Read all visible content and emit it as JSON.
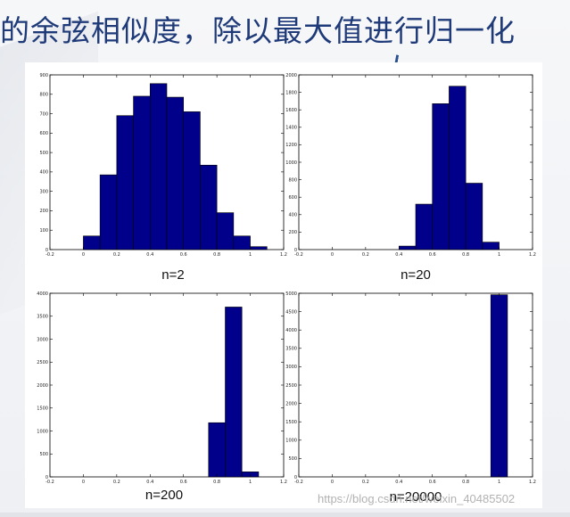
{
  "title": "的余弦相似度，除以最大值进行归一化",
  "watermark": "https://blog.csdn.net/weixin_40485502",
  "chart_data": [
    {
      "type": "bar",
      "caption": "n=2",
      "x_ticks": [
        "-0.2",
        "0",
        "0.2",
        "0.4",
        "0.6",
        "0.8",
        "1",
        "1.2"
      ],
      "y_ticks": [
        "0",
        "100",
        "200",
        "300",
        "400",
        "500",
        "600",
        "700",
        "800",
        "900"
      ],
      "xlim": [
        -0.2,
        1.2
      ],
      "ylim": [
        0,
        900
      ],
      "bin_edges": [
        0.0,
        0.1,
        0.2,
        0.3,
        0.4,
        0.5,
        0.6,
        0.7,
        0.8,
        0.9,
        1.0,
        1.1
      ],
      "values": [
        70,
        385,
        690,
        790,
        855,
        785,
        710,
        435,
        190,
        70,
        15
      ]
    },
    {
      "type": "bar",
      "caption": "n=20",
      "x_ticks": [
        "-0.2",
        "0",
        "0.2",
        "0.4",
        "0.6",
        "0.8",
        "1",
        "1.2"
      ],
      "y_ticks": [
        "0",
        "200",
        "400",
        "600",
        "800",
        "1000",
        "1200",
        "1400",
        "1600",
        "1800",
        "2000"
      ],
      "xlim": [
        -0.2,
        1.2
      ],
      "ylim": [
        0,
        2000
      ],
      "bin_edges": [
        0.4,
        0.5,
        0.6,
        0.7,
        0.8,
        0.9,
        1.0
      ],
      "values": [
        40,
        520,
        1670,
        1870,
        760,
        85
      ]
    },
    {
      "type": "bar",
      "caption": "n=200",
      "x_ticks": [
        "-0.2",
        "0",
        "0.2",
        "0.4",
        "0.6",
        "0.8",
        "1",
        "1.2"
      ],
      "y_ticks": [
        "0",
        "500",
        "1000",
        "1500",
        "2000",
        "2500",
        "3000",
        "3500",
        "4000"
      ],
      "xlim": [
        -0.2,
        1.2
      ],
      "ylim": [
        0,
        4000
      ],
      "bin_edges": [
        0.75,
        0.85,
        0.95,
        1.05
      ],
      "values": [
        1180,
        3700,
        110
      ]
    },
    {
      "type": "bar",
      "caption": "n=20000",
      "x_ticks": [
        "-0.2",
        "0",
        "0.2",
        "0.4",
        "0.6",
        "0.8",
        "1",
        "1.2"
      ],
      "y_ticks": [
        "0",
        "500",
        "1000",
        "1500",
        "2000",
        "2500",
        "3000",
        "3500",
        "4000",
        "4500",
        "5000"
      ],
      "xlim": [
        -0.2,
        1.2
      ],
      "ylim": [
        0,
        5000
      ],
      "bin_edges": [
        0.95,
        1.05
      ],
      "values": [
        4960
      ]
    }
  ],
  "colors": {
    "bar": "#00008b",
    "title": "#1f3a78"
  }
}
